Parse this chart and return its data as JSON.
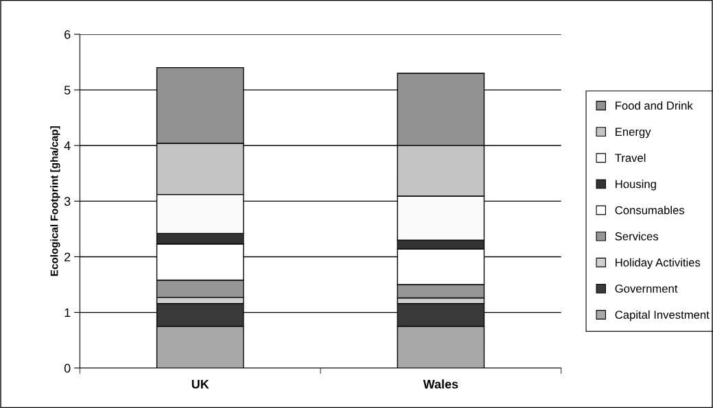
{
  "chart_data": {
    "type": "bar",
    "stacked": true,
    "ylabel": "Ecological Footprint [gha/cap]",
    "categories": [
      "UK",
      "Wales"
    ],
    "series": [
      {
        "name": "Capital Investment",
        "color": "#a8a8a8",
        "values": [
          0.75,
          0.75
        ]
      },
      {
        "name": "Government",
        "color": "#3a3a3a",
        "values": [
          0.41,
          0.41
        ]
      },
      {
        "name": "Holiday Activities",
        "color": "#d0d0d0",
        "values": [
          0.11,
          0.1
        ]
      },
      {
        "name": "Services",
        "color": "#969696",
        "values": [
          0.31,
          0.24
        ]
      },
      {
        "name": "Consumables",
        "color": "#ffffff",
        "values": [
          0.65,
          0.64
        ]
      },
      {
        "name": "Housing",
        "color": "#333333",
        "values": [
          0.19,
          0.16
        ]
      },
      {
        "name": "Travel",
        "color": "#fafafa",
        "values": [
          0.7,
          0.79
        ]
      },
      {
        "name": "Energy",
        "color": "#c4c4c4",
        "values": [
          0.92,
          0.91
        ]
      },
      {
        "name": "Food and Drink",
        "color": "#929292",
        "values": [
          1.36,
          1.3
        ]
      }
    ],
    "ylim": [
      0,
      6
    ],
    "yticks": [
      0,
      1,
      2,
      3,
      4,
      5,
      6
    ],
    "grid": "y",
    "legend": "right"
  }
}
